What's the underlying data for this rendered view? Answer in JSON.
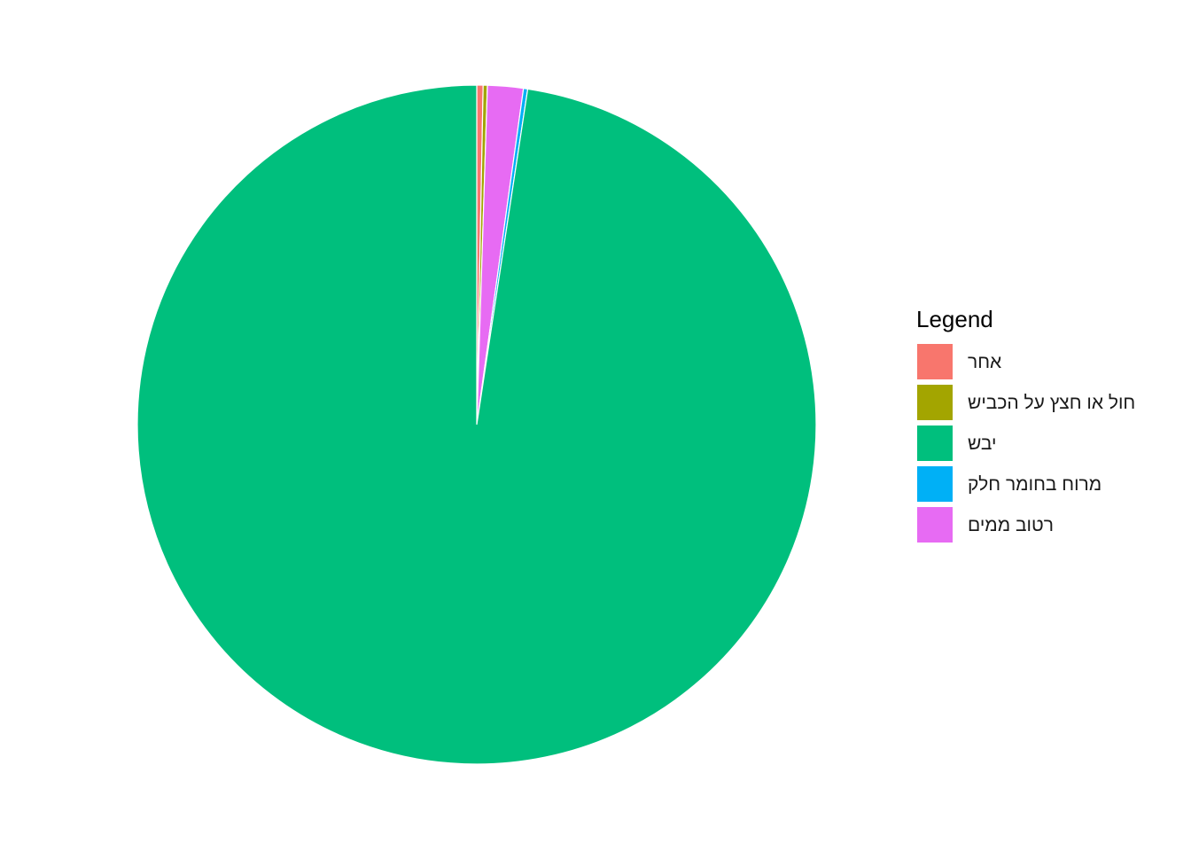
{
  "chart_data": {
    "type": "pie",
    "title": "",
    "legend": {
      "title": "Legend",
      "position": "right"
    },
    "slices": [
      {
        "label": "אחר",
        "value": 0.3,
        "color": "#F8766D"
      },
      {
        "label": "חול או חצץ על הכביש",
        "value": 0.2,
        "color": "#A3A500"
      },
      {
        "label": "יבש",
        "value": 97.6,
        "color": "#00BF7D"
      },
      {
        "label": "מרוח בחומר חלק",
        "value": 0.2,
        "color": "#00B0F6"
      },
      {
        "label": "רטוב ממים",
        "value": 1.7,
        "color": "#E76BF3"
      }
    ],
    "slice_order_clockwise": [
      "אחר",
      "חול או חצץ על הכביש",
      "רטוב ממים",
      "מרוח בחומר חלק",
      "יבש"
    ]
  }
}
